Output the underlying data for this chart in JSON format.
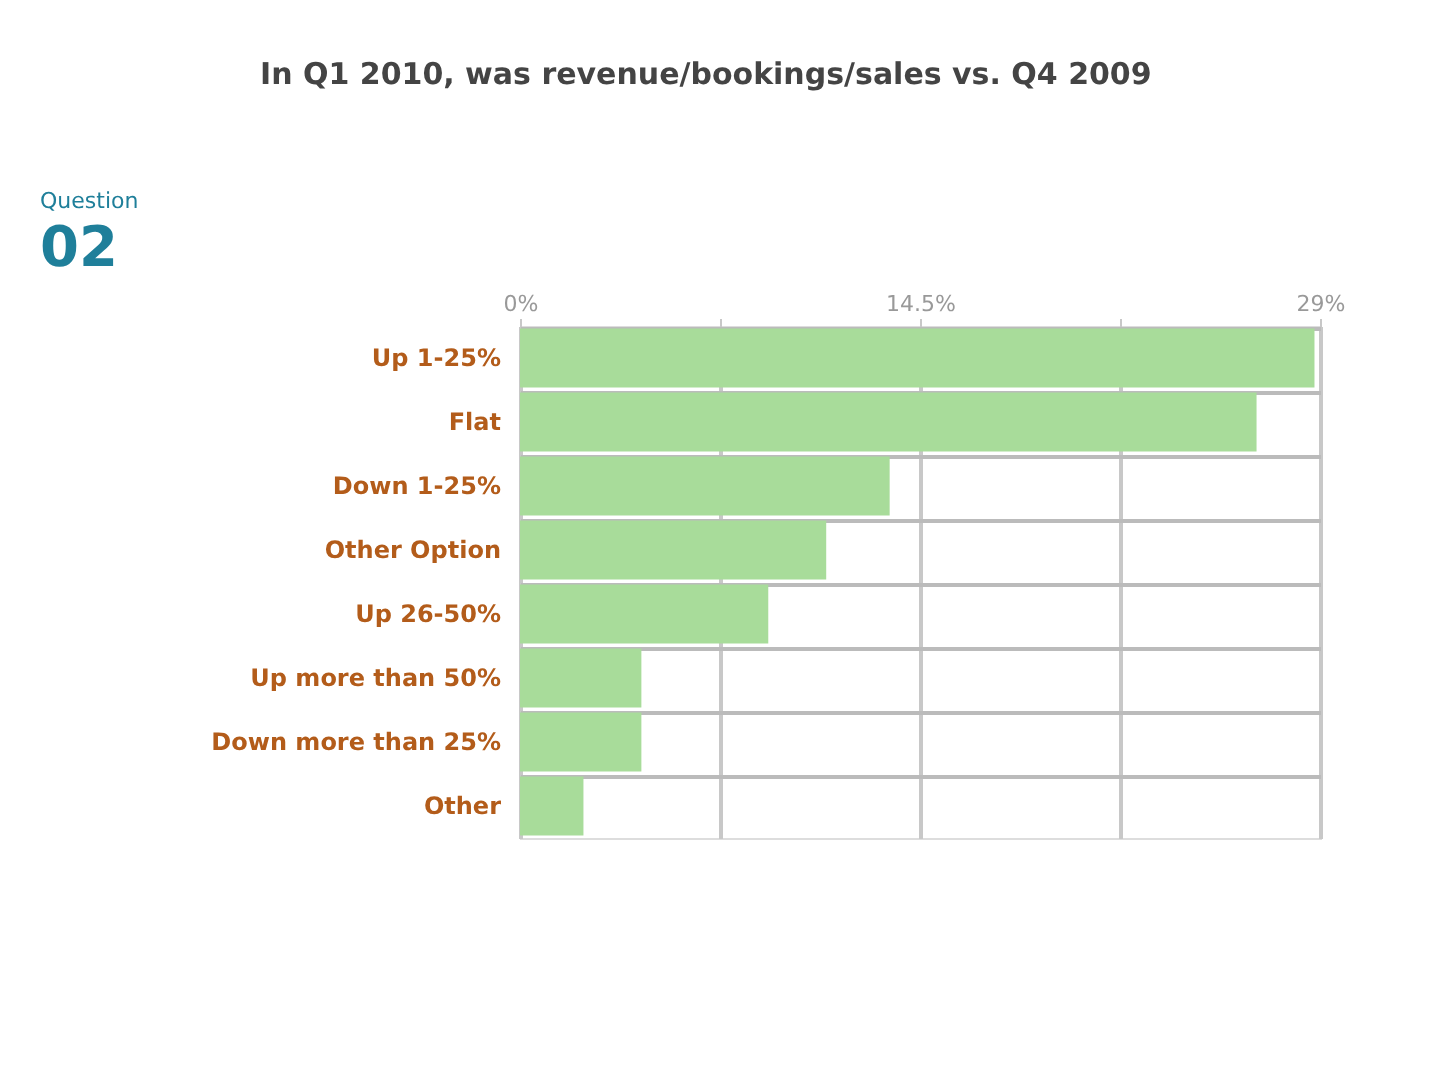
{
  "chart_data": {
    "type": "bar",
    "orientation": "horizontal",
    "title": "In Q1 2010, was revenue/bookings/sales vs. Q4 2009",
    "annotations": [
      "Question",
      "02"
    ],
    "categories": [
      "Up 1-25%",
      "Flat",
      "Down 1-25%",
      "Other Option",
      "Up 26-50%",
      "Up more than 50%",
      "Down more than 25%",
      "Other"
    ],
    "values": [
      28.8,
      26.7,
      13.4,
      11.1,
      9.0,
      4.4,
      4.4,
      2.3
    ],
    "color": "#a8dc9a",
    "xlim": [
      0,
      29
    ],
    "xticks": [
      {
        "value": 0,
        "label": "0%"
      },
      {
        "value": 7.25,
        "label": null
      },
      {
        "value": 14.5,
        "label": "14.5%"
      },
      {
        "value": 21.75,
        "label": null
      },
      {
        "value": 29,
        "label": "29%"
      }
    ],
    "grid": true
  }
}
